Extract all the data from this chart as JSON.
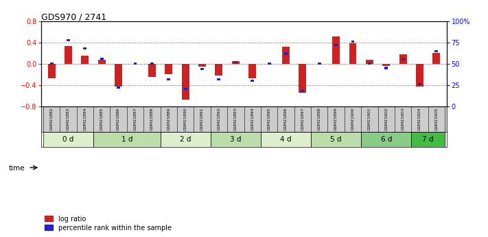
{
  "title": "GDS970 / 2741",
  "samples": [
    "GSM21882",
    "GSM21883",
    "GSM21884",
    "GSM21885",
    "GSM21886",
    "GSM21887",
    "GSM21888",
    "GSM21889",
    "GSM21890",
    "GSM21891",
    "GSM21892",
    "GSM21893",
    "GSM21894",
    "GSM21895",
    "GSM21896",
    "GSM21897",
    "GSM21898",
    "GSM21899",
    "GSM21900",
    "GSM21901",
    "GSM21902",
    "GSM21903",
    "GSM21904",
    "GSM21905"
  ],
  "log_ratio": [
    -0.28,
    0.33,
    0.15,
    0.08,
    -0.43,
    0.0,
    -0.25,
    -0.2,
    -0.68,
    -0.05,
    -0.22,
    0.05,
    -0.27,
    0.0,
    0.32,
    -0.55,
    0.0,
    0.52,
    0.38,
    0.08,
    -0.04,
    0.18,
    -0.43,
    0.2
  ],
  "percentile_rank": [
    50,
    78,
    68,
    56,
    22,
    50,
    50,
    32,
    20,
    44,
    32,
    52,
    30,
    50,
    62,
    18,
    50,
    72,
    76,
    50,
    45,
    55,
    26,
    65
  ],
  "groups": [
    {
      "label": "0 d",
      "start": 0,
      "end": 3
    },
    {
      "label": "1 d",
      "start": 3,
      "end": 7
    },
    {
      "label": "2 d",
      "start": 7,
      "end": 10
    },
    {
      "label": "3 d",
      "start": 10,
      "end": 13
    },
    {
      "label": "4 d",
      "start": 13,
      "end": 16
    },
    {
      "label": "5 d",
      "start": 16,
      "end": 19
    },
    {
      "label": "6 d",
      "start": 19,
      "end": 22
    },
    {
      "label": "7 d",
      "start": 22,
      "end": 24
    }
  ],
  "group_colors": [
    "#ddeecc",
    "#bbddaa",
    "#ddeecc",
    "#bbddaa",
    "#ddeecc",
    "#bbddaa",
    "#88cc88",
    "#44bb44"
  ],
  "ylim": [
    -0.8,
    0.8
  ],
  "yticks_left": [
    -0.8,
    -0.4,
    0.0,
    0.4,
    0.8
  ],
  "right_tick_positions": [
    -0.8,
    -0.4,
    0.0,
    0.4,
    0.8
  ],
  "right_tick_labels": [
    "0",
    "25",
    "50",
    "75",
    "100%"
  ],
  "bar_color_red": "#cc2222",
  "bar_color_blue": "#2222cc",
  "hline_color": "#cc0000",
  "dotted_color": "#555555",
  "bg_color": "#ffffff",
  "sample_bg_color": "#cccccc"
}
